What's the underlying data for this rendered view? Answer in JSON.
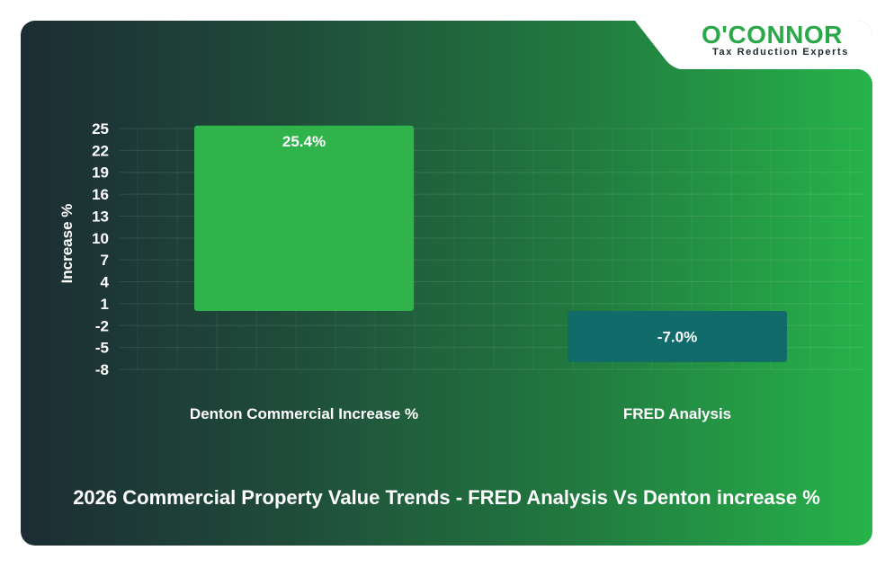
{
  "brand": {
    "name": "O'CONNOR",
    "tagline": "Tax Reduction Experts"
  },
  "chart_data": {
    "type": "bar",
    "title": "2026 Commercial Property Value Trends - FRED Analysis Vs Denton increase %",
    "xlabel": "",
    "ylabel": "Increase %",
    "categories": [
      "Denton Commercial Increase %",
      "FRED Analysis"
    ],
    "values": [
      25.4,
      -7.0
    ],
    "value_labels": [
      "25.4%",
      "-7.0%"
    ],
    "bar_colors": [
      "#2fb34a",
      "#126b6b"
    ],
    "yticks": [
      25,
      22,
      19,
      16,
      13,
      10,
      7,
      4,
      1,
      -2,
      -5,
      -8
    ],
    "ylim": [
      -8,
      25
    ],
    "grid": true,
    "legend": "none"
  }
}
